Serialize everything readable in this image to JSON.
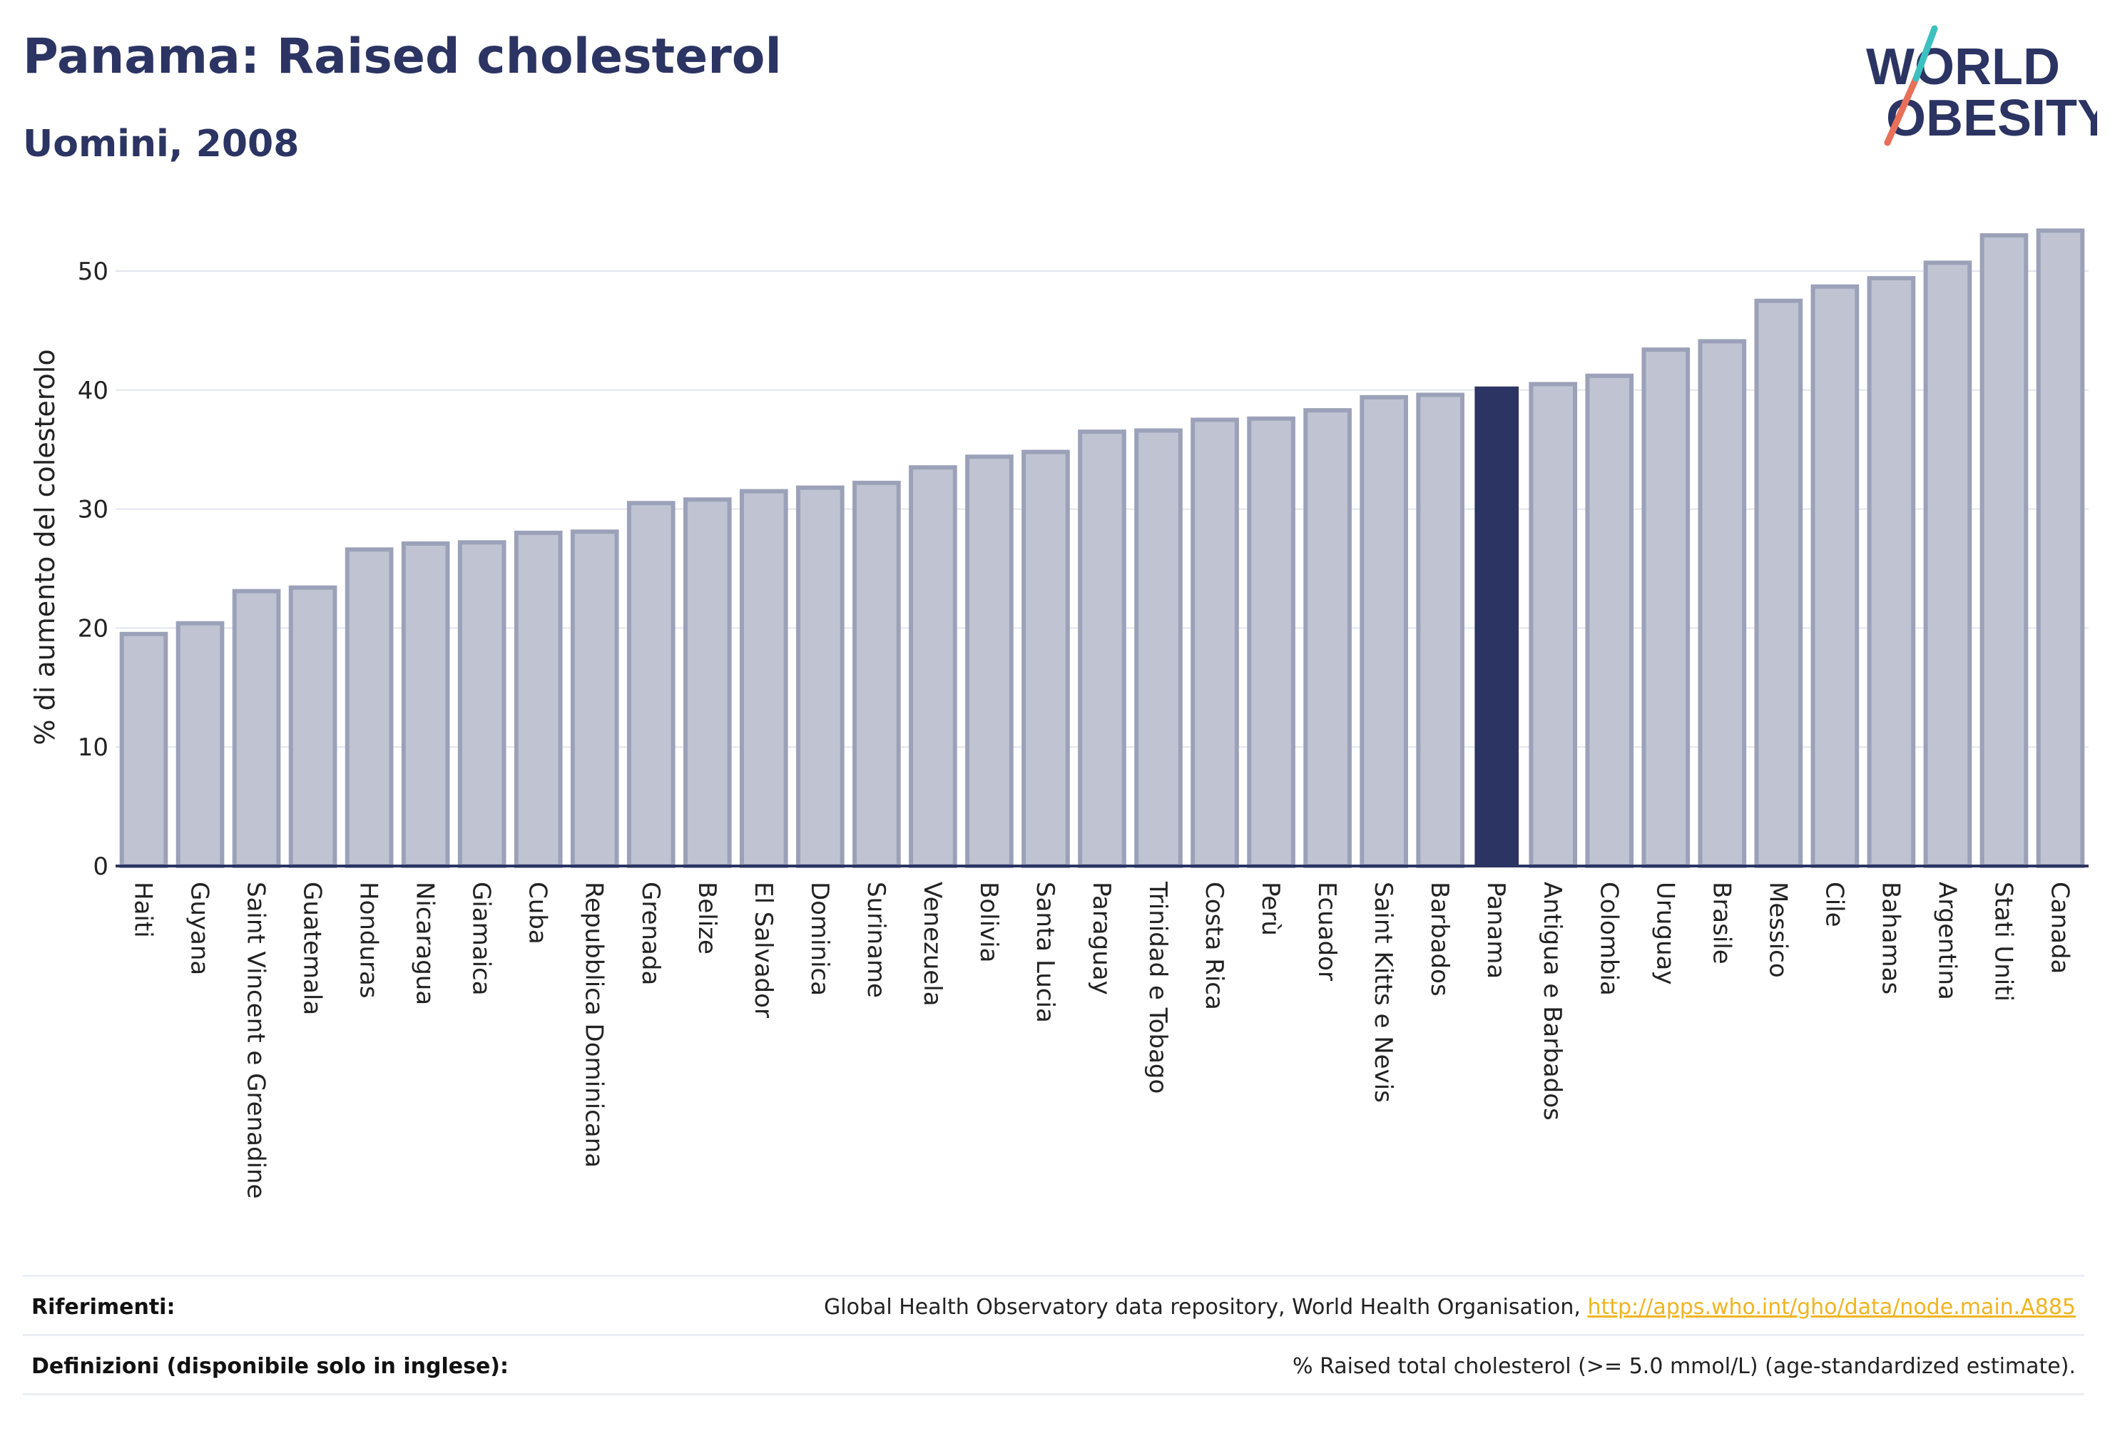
{
  "header": {
    "title": "Panama: Raised cholesterol",
    "subtitle": "Uomini, 2008"
  },
  "logo": {
    "line1": "WORLD",
    "line2": "OBESITY"
  },
  "colors": {
    "bar": "#c0c4d2",
    "bar_border": "#9ba1b8",
    "highlight": "#2b3462",
    "grid": "#e3e5ee",
    "axis": "#2b3462"
  },
  "chart_data": {
    "type": "bar",
    "title": "Panama: Raised cholesterol",
    "subtitle": "Uomini, 2008",
    "xlabel": "",
    "ylabel": "% di aumento del colesterolo",
    "ylim": [
      0,
      55
    ],
    "yticks": [
      0,
      10,
      20,
      30,
      40,
      50
    ],
    "grid": true,
    "highlight": "Panama",
    "categories": [
      "Haiti",
      "Guyana",
      "Saint Vincent e Grenadine",
      "Guatemala",
      "Honduras",
      "Nicaragua",
      "Giamaica",
      "Cuba",
      "Repubblica Dominicana",
      "Grenada",
      "Belize",
      "El Salvador",
      "Dominica",
      "Suriname",
      "Venezuela",
      "Bolivia",
      "Santa Lucia",
      "Paraguay",
      "Trinidad e Tobago",
      "Costa Rica",
      "Perù",
      "Ecuador",
      "Saint Kitts e Nevis",
      "Barbados",
      "Panama",
      "Antigua e Barbados",
      "Colombia",
      "Uruguay",
      "Brasile",
      "Messico",
      "Cile",
      "Bahamas",
      "Argentina",
      "Stati Uniti",
      "Canada"
    ],
    "values": [
      19.5,
      20.4,
      23.1,
      23.4,
      26.6,
      27.1,
      27.2,
      28.0,
      28.1,
      30.5,
      30.8,
      31.5,
      31.8,
      32.2,
      33.5,
      34.4,
      34.8,
      36.5,
      36.6,
      37.5,
      37.6,
      38.3,
      39.4,
      39.6,
      40.3,
      40.5,
      41.2,
      43.4,
      44.1,
      47.5,
      48.7,
      49.4,
      50.7,
      53.0,
      53.4
    ]
  },
  "footer": {
    "references_label": "Riferimenti:",
    "references_text": "Global Health Observatory data repository, World Health Organisation, ",
    "references_link": "http://apps.who.int/gho/data/node.main.A885",
    "definitions_label": "Definizioni (disponibile solo in inglese):",
    "definitions_text": "% Raised total cholesterol (>= 5.0 mmol/L) (age-standardized estimate)."
  }
}
